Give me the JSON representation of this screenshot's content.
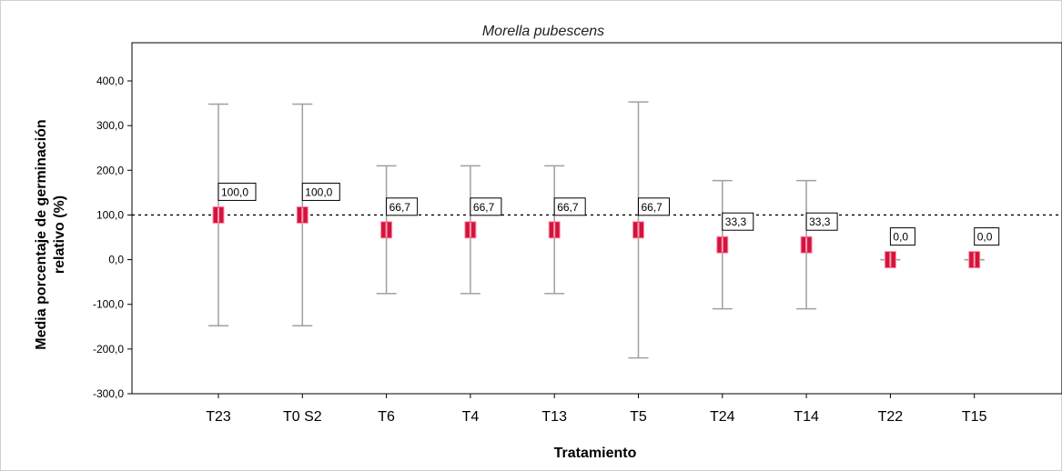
{
  "chart_data": {
    "type": "scatter",
    "title": "Morella pubescens",
    "xlabel": "Tratamiento",
    "ylabel_line1": "Media porcentaje de germinación",
    "ylabel_line2": "relativo (%)",
    "ylim": [
      -300,
      400
    ],
    "yticks": [
      400,
      300,
      200,
      100,
      0,
      -100,
      -200,
      -300
    ],
    "ytick_labels": [
      "400,0",
      "300,0",
      "200,0",
      "100,0",
      "0,0",
      "-100,0",
      "-200,0",
      "-300,0"
    ],
    "reference_line": 100,
    "categories": [
      "T23",
      "T0 S2",
      "T6",
      "T4",
      "T13",
      "T5",
      "T24",
      "T14",
      "T22",
      "T15"
    ],
    "means": [
      100,
      100,
      66.7,
      66.7,
      66.7,
      66.7,
      33.3,
      33.3,
      0,
      0
    ],
    "mean_labels": [
      "100,0",
      "100,0",
      "66,7",
      "66,7",
      "66,7",
      "66,7",
      "33,3",
      "33,3",
      "0,0",
      "0,0"
    ],
    "error_upper": [
      348,
      348,
      210,
      210,
      210,
      353,
      177,
      177,
      0,
      0
    ],
    "error_lower": [
      -148,
      -148,
      -76,
      -76,
      -76,
      -220,
      -110,
      -110,
      0,
      0
    ],
    "marker_color": "#d2143c",
    "error_color": "#a0a0a0",
    "grid": false
  }
}
